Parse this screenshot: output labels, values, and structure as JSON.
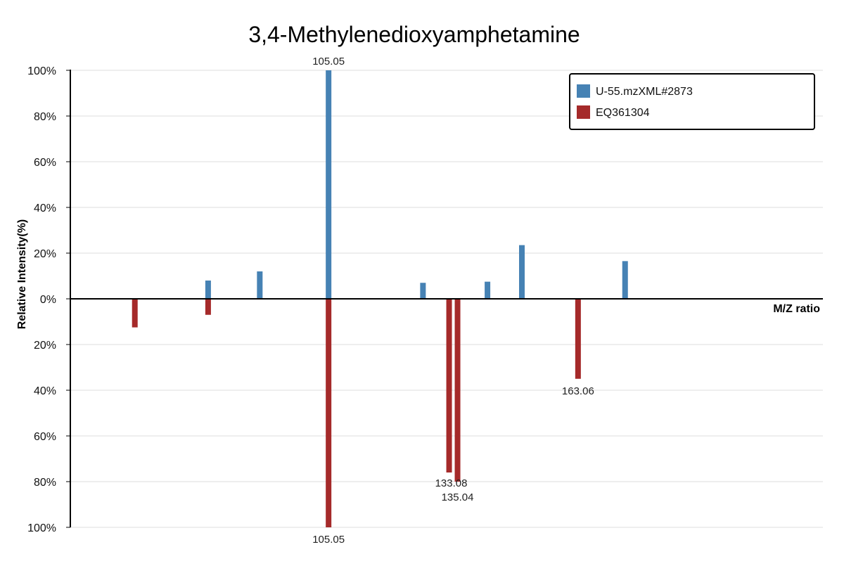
{
  "chart_data": {
    "type": "bar",
    "title": "3,4-Methylenedioxyamphetamine",
    "xlabel": "M/Z ratio",
    "ylabel": "Relative Intensity(%)",
    "xlim": [
      45,
      220
    ],
    "ylim": [
      -100,
      100
    ],
    "y_ticks": [
      "100%",
      "80%",
      "60%",
      "40%",
      "20%",
      "0%",
      "20%",
      "40%",
      "60%",
      "80%",
      "100%"
    ],
    "grid": true,
    "legend_position": "top-right",
    "series": [
      {
        "name": "U-55.mzXML#2873",
        "color": "#4682b4",
        "direction": "up",
        "peaks": [
          {
            "mz": 77.04,
            "intensity": 8
          },
          {
            "mz": 89.05,
            "intensity": 12
          },
          {
            "mz": 105.05,
            "intensity": 100,
            "label": "105.05"
          },
          {
            "mz": 127.0,
            "intensity": 7
          },
          {
            "mz": 142.0,
            "intensity": 7.5
          },
          {
            "mz": 150.0,
            "intensity": 23.5
          },
          {
            "mz": 174.0,
            "intensity": 16.5
          }
        ]
      },
      {
        "name": "EQ361304",
        "color": "#a52a2a",
        "direction": "down",
        "peaks": [
          {
            "mz": 60.0,
            "intensity": 12.5
          },
          {
            "mz": 77.04,
            "intensity": 7
          },
          {
            "mz": 105.05,
            "intensity": 100,
            "label": "105.05"
          },
          {
            "mz": 133.08,
            "intensity": 76,
            "label": "133.08"
          },
          {
            "mz": 135.04,
            "intensity": 80,
            "label": "135.04"
          },
          {
            "mz": 163.06,
            "intensity": 35,
            "label": "163.06"
          }
        ]
      }
    ]
  }
}
